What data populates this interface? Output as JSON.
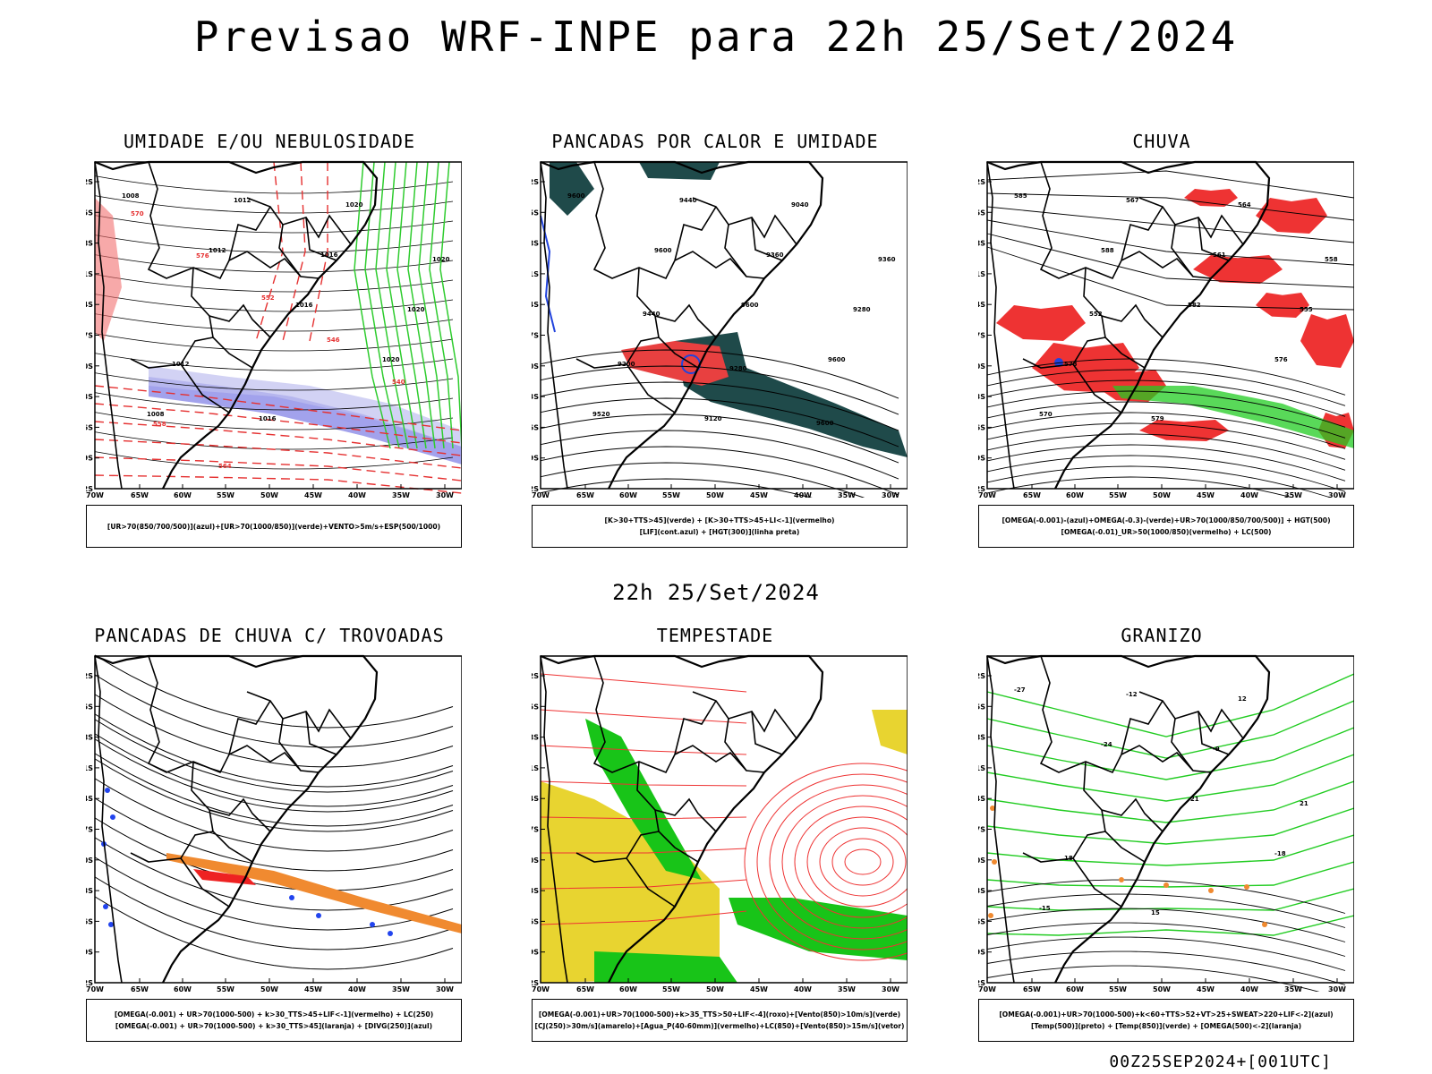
{
  "header": {
    "title": "Previsao WRF-INPE  para 22h 25/Set/2024",
    "subtitle": "22h 25/Set/2024",
    "footer": "00Z25SEP2024+[001UTC]"
  },
  "axes": {
    "lat_labels": [
      "12S",
      "15S",
      "18S",
      "21S",
      "24S",
      "27S",
      "30S",
      "33S",
      "36S",
      "39S",
      "42S"
    ],
    "lon_labels": [
      "70W",
      "65W",
      "60W",
      "55W",
      "50W",
      "45W",
      "40W",
      "35W",
      "30W"
    ]
  },
  "panels": [
    {
      "id": "umidade",
      "title": "UMIDADE E/OU NEBULOSIDADE",
      "legend": [
        "[UR>70(850/700/500)](azul)+[UR>70(1000/850)](verde)+VENTO>5m/s+ESP(500/1000)"
      ],
      "contour_labels": [
        "1008",
        "1012",
        "1016",
        "1020",
        "1008",
        "1012",
        "1016",
        "1020",
        "1012",
        "1016",
        "1020",
        "1020"
      ],
      "red_labels": [
        "570",
        "576",
        "552",
        "546",
        "540",
        "558",
        "564"
      ],
      "colors": {
        "rh_high": "#5555dd",
        "rh_low": "#2ecc2e",
        "thickness": "#e53030"
      }
    },
    {
      "id": "pancadas-calor",
      "title": "PANCADAS POR CALOR E UMIDADE",
      "legend": [
        "[K>30+TTS>45](verde) + [K>30+TTS>45+LI<-1](vermelho)",
        "[LIF](cont.azul) + [HGT(300)](linha preta)"
      ],
      "contour_labels": [
        "9600",
        "9600",
        "9600",
        "9600",
        "9520",
        "9440",
        "9360",
        "9280",
        "9200",
        "9120",
        "9040",
        "9360",
        "9440",
        "9280",
        "9600"
      ],
      "colors": {
        "k_tts": "#1f4a4a",
        "k_tts_li": "#e84040",
        "lif": "#2244dd"
      }
    },
    {
      "id": "chuva",
      "title": "CHUVA",
      "legend": [
        "[OMEGA(-0.001)-(azul)+OMEGA(-0.3)-(verde)+UR>70(1000/850/700/500)] + HGT(500)",
        "[OMEGA(-0.01)_UR>50(1000/850)(vermelho) + LC(500)"
      ],
      "contour_labels": [
        "585",
        "588",
        "582",
        "576",
        "570",
        "567",
        "561",
        "555",
        "573",
        "579",
        "564",
        "558",
        "552"
      ],
      "colors": {
        "omega_ur": "#ee3333",
        "omega_blue": "#2244dd",
        "omega_green": "#22cc22"
      }
    },
    {
      "id": "pancadas-trovoadas",
      "title": "PANCADAS DE CHUVA C/ TROVOADAS",
      "legend": [
        "[OMEGA(-0.001) + UR>70(1000-500) + k>30_TTS>45+LIF<-1](vermelho) + LC(250)",
        "[OMEGA(-0.001) + UR>70(1000-500) + k>30_TTS>45](laranja) + [DIVG(250)](azul)"
      ],
      "colors": {
        "red": "#ee2222",
        "orange": "#f08a30",
        "blue": "#2244ee"
      }
    },
    {
      "id": "tempestade",
      "title": "TEMPESTADE",
      "legend": [
        "[OMEGA(-0.001)+UR>70(1000-500)+k>35_TTS>50+LIF<-4](roxo)+[Vento(850)>10m/s](verde)",
        "[CJ(250)>30m/s](amarelo)+[Agua_P(40-60mm)](vermelho)+LC(850)+[Vento(850)>15m/s](vetor)"
      ],
      "colors": {
        "jet": "#e8d430",
        "wind": "#18c418",
        "lc": "#ee3333"
      }
    },
    {
      "id": "granizo",
      "title": "GRANIZO",
      "legend": [
        "[OMEGA(-0.001)+UR>70(1000-500)+k<60+TTS>52+VT>25+SWEAT>220+LIF<-2](azul)",
        "[Temp(500)](preto) + [Temp(850)](verde) + [OMEGA(500)<-2](laranja)"
      ],
      "contour_labels": [
        "-27",
        "-24",
        "-21",
        "-18",
        "-15",
        "-12",
        "-9",
        "21",
        "18",
        "15",
        "12"
      ],
      "colors": {
        "temp850": "#22cc22",
        "omega500": "#f08a30"
      }
    }
  ]
}
